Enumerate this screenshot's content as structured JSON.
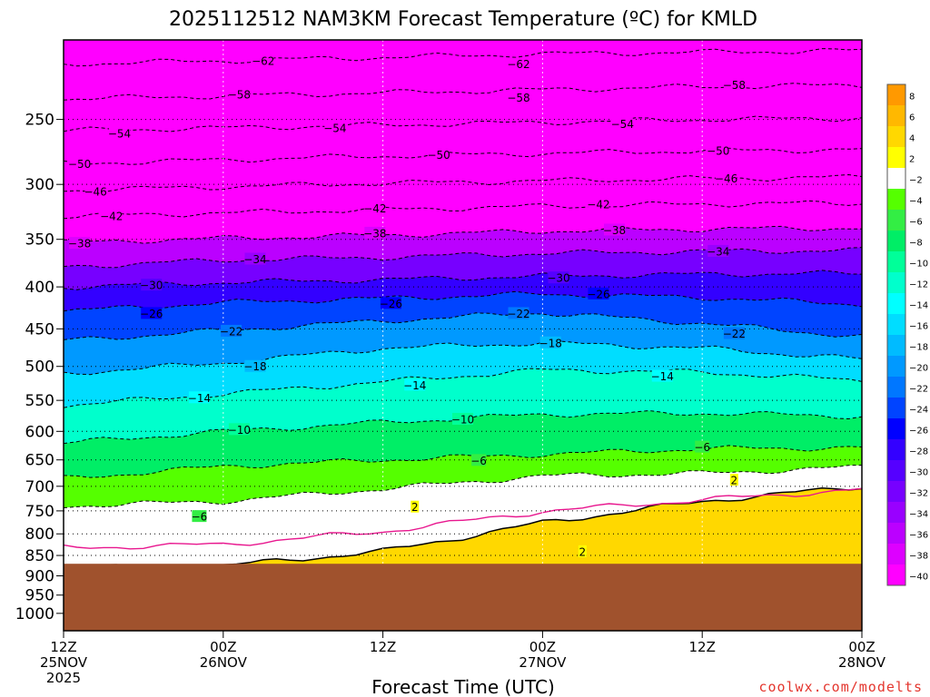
{
  "chart_data": {
    "type": "heatmap",
    "title": "2025112512 NAM3KM Forecast Temperature (ºC) for KMLD",
    "xlabel": "Forecast Time (UTC)",
    "ylabel": "",
    "x_ticks": [
      {
        "hours": 0,
        "line1": "12Z",
        "line2": "25NOV",
        "line3": "2025"
      },
      {
        "hours": 12,
        "line1": "00Z",
        "line2": "26NOV"
      },
      {
        "hours": 24,
        "line1": "12Z",
        "line2": ""
      },
      {
        "hours": 36,
        "line1": "00Z",
        "line2": "27NOV"
      },
      {
        "hours": 48,
        "line1": "12Z",
        "line2": ""
      },
      {
        "hours": 60,
        "line1": "00Z",
        "line2": "28NOV"
      }
    ],
    "xlim": [
      0,
      60
    ],
    "ylim_hPa": [
      1050,
      200
    ],
    "y_ticks": [
      250,
      300,
      350,
      400,
      450,
      500,
      550,
      600,
      650,
      700,
      750,
      800,
      850,
      900,
      950,
      1000
    ],
    "surface_pressure_hPa": 870,
    "freezing_line_color": "#e8168e",
    "ground_color": "#a0522d",
    "colorbar": {
      "levels": [
        8,
        6,
        4,
        2,
        -2,
        -4,
        -6,
        -8,
        -10,
        -12,
        -14,
        -16,
        -18,
        -20,
        -22,
        -24,
        -26,
        -28,
        -30,
        -32,
        -34,
        -36,
        -38,
        -40
      ],
      "colors": [
        "#ff9900",
        "#ffb800",
        "#ffd800",
        "#ffff00",
        "#ffffff",
        "#55ff00",
        "#33ee44",
        "#00ee66",
        "#00ff99",
        "#00ffcc",
        "#00ffff",
        "#00ddff",
        "#00bbff",
        "#0099ff",
        "#0077ff",
        "#0044ff",
        "#0000ff",
        "#3300ff",
        "#5500ff",
        "#7700ff",
        "#9900ff",
        "#bb00ff",
        "#dd00ff",
        "#ff00ff"
      ]
    },
    "temperature_bands": [
      {
        "t": -62,
        "p": [
          214,
          212,
          210,
          208,
          207,
          206
        ]
      },
      {
        "t": -58,
        "p": [
          236,
          234,
          232,
          230,
          228,
          227
        ]
      },
      {
        "t": -54,
        "p": [
          258,
          256,
          254,
          252,
          250,
          249
        ]
      },
      {
        "t": -50,
        "p": [
          283,
          280,
          277,
          275,
          273,
          272
        ]
      },
      {
        "t": -46,
        "p": [
          305,
          302,
          299,
          297,
          295,
          294
        ]
      },
      {
        "t": -42,
        "p": [
          328,
          325,
          322,
          319,
          317,
          316
        ]
      },
      {
        "t": -38,
        "p": [
          353,
          349,
          346,
          342,
          340,
          339
        ]
      },
      {
        "t": -34,
        "p": [
          378,
          371,
          368,
          364,
          362,
          361
        ]
      },
      {
        "t": -30,
        "p": [
          400,
          395,
          392,
          388,
          386,
          385
        ]
      },
      {
        "t": -26,
        "p": [
          428,
          418,
          413,
          408,
          412,
          420
        ]
      },
      {
        "t": -22,
        "p": [
          465,
          452,
          440,
          430,
          443,
          460
        ]
      },
      {
        "t": -18,
        "p": [
          510,
          495,
          475,
          468,
          475,
          490
        ]
      },
      {
        "t": -14,
        "p": [
          558,
          540,
          522,
          505,
          508,
          520
        ]
      },
      {
        "t": -10,
        "p": [
          620,
          600,
          585,
          572,
          570,
          575
        ]
      },
      {
        "t": -6,
        "p": [
          685,
          662,
          650,
          640,
          630,
          628
        ]
      },
      {
        "t": -2,
        "p": [
          740,
          730,
          705,
          680,
          675,
          663
        ]
      },
      {
        "t": 2,
        "p": [
          880,
          875,
          840,
          775,
          730,
          700
        ]
      }
    ],
    "contour_labels": [
      {
        "t": -62,
        "x": 0.25,
        "p": 212
      },
      {
        "t": -62,
        "x": 0.57,
        "p": 214
      },
      {
        "t": -58,
        "x": 0.84,
        "p": 227
      },
      {
        "t": -58,
        "x": 0.22,
        "p": 233
      },
      {
        "t": -58,
        "x": 0.57,
        "p": 235
      },
      {
        "t": -54,
        "x": 0.07,
        "p": 260
      },
      {
        "t": -54,
        "x": 0.34,
        "p": 256
      },
      {
        "t": -54,
        "x": 0.7,
        "p": 253
      },
      {
        "t": -50,
        "x": 0.02,
        "p": 283
      },
      {
        "t": -50,
        "x": 0.47,
        "p": 276
      },
      {
        "t": -50,
        "x": 0.82,
        "p": 273
      },
      {
        "t": -46,
        "x": 0.04,
        "p": 306
      },
      {
        "t": -46,
        "x": 0.83,
        "p": 295
      },
      {
        "t": -42,
        "x": 0.06,
        "p": 328
      },
      {
        "t": -42,
        "x": 0.39,
        "p": 321
      },
      {
        "t": -42,
        "x": 0.67,
        "p": 317
      },
      {
        "t": -38,
        "x": 0.02,
        "p": 354
      },
      {
        "t": -38,
        "x": 0.39,
        "p": 344
      },
      {
        "t": -38,
        "x": 0.69,
        "p": 341
      },
      {
        "t": -34,
        "x": 0.24,
        "p": 370
      },
      {
        "t": -34,
        "x": 0.82,
        "p": 362
      },
      {
        "t": -30,
        "x": 0.11,
        "p": 398
      },
      {
        "t": -30,
        "x": 0.62,
        "p": 390
      },
      {
        "t": -26,
        "x": 0.11,
        "p": 431
      },
      {
        "t": -26,
        "x": 0.41,
        "p": 419
      },
      {
        "t": -26,
        "x": 0.67,
        "p": 408
      },
      {
        "t": -22,
        "x": 0.21,
        "p": 453
      },
      {
        "t": -22,
        "x": 0.57,
        "p": 431
      },
      {
        "t": -22,
        "x": 0.84,
        "p": 456
      },
      {
        "t": -18,
        "x": 0.24,
        "p": 500
      },
      {
        "t": -18,
        "x": 0.61,
        "p": 468
      },
      {
        "t": -14,
        "x": 0.17,
        "p": 546
      },
      {
        "t": -14,
        "x": 0.44,
        "p": 527
      },
      {
        "t": -14,
        "x": 0.75,
        "p": 514
      },
      {
        "t": -10,
        "x": 0.22,
        "p": 597
      },
      {
        "t": -10,
        "x": 0.5,
        "p": 580
      },
      {
        "t": -6,
        "x": 0.17,
        "p": 762
      },
      {
        "t": -6,
        "x": 0.52,
        "p": 651
      },
      {
        "t": -6,
        "x": 0.8,
        "p": 627
      },
      {
        "t": 2,
        "x": 0.44,
        "p": 742
      },
      {
        "t": 2,
        "x": 0.65,
        "p": 841
      },
      {
        "t": 2,
        "x": 0.84,
        "p": 688
      }
    ]
  },
  "watermark": "coolwx.com/modelts"
}
